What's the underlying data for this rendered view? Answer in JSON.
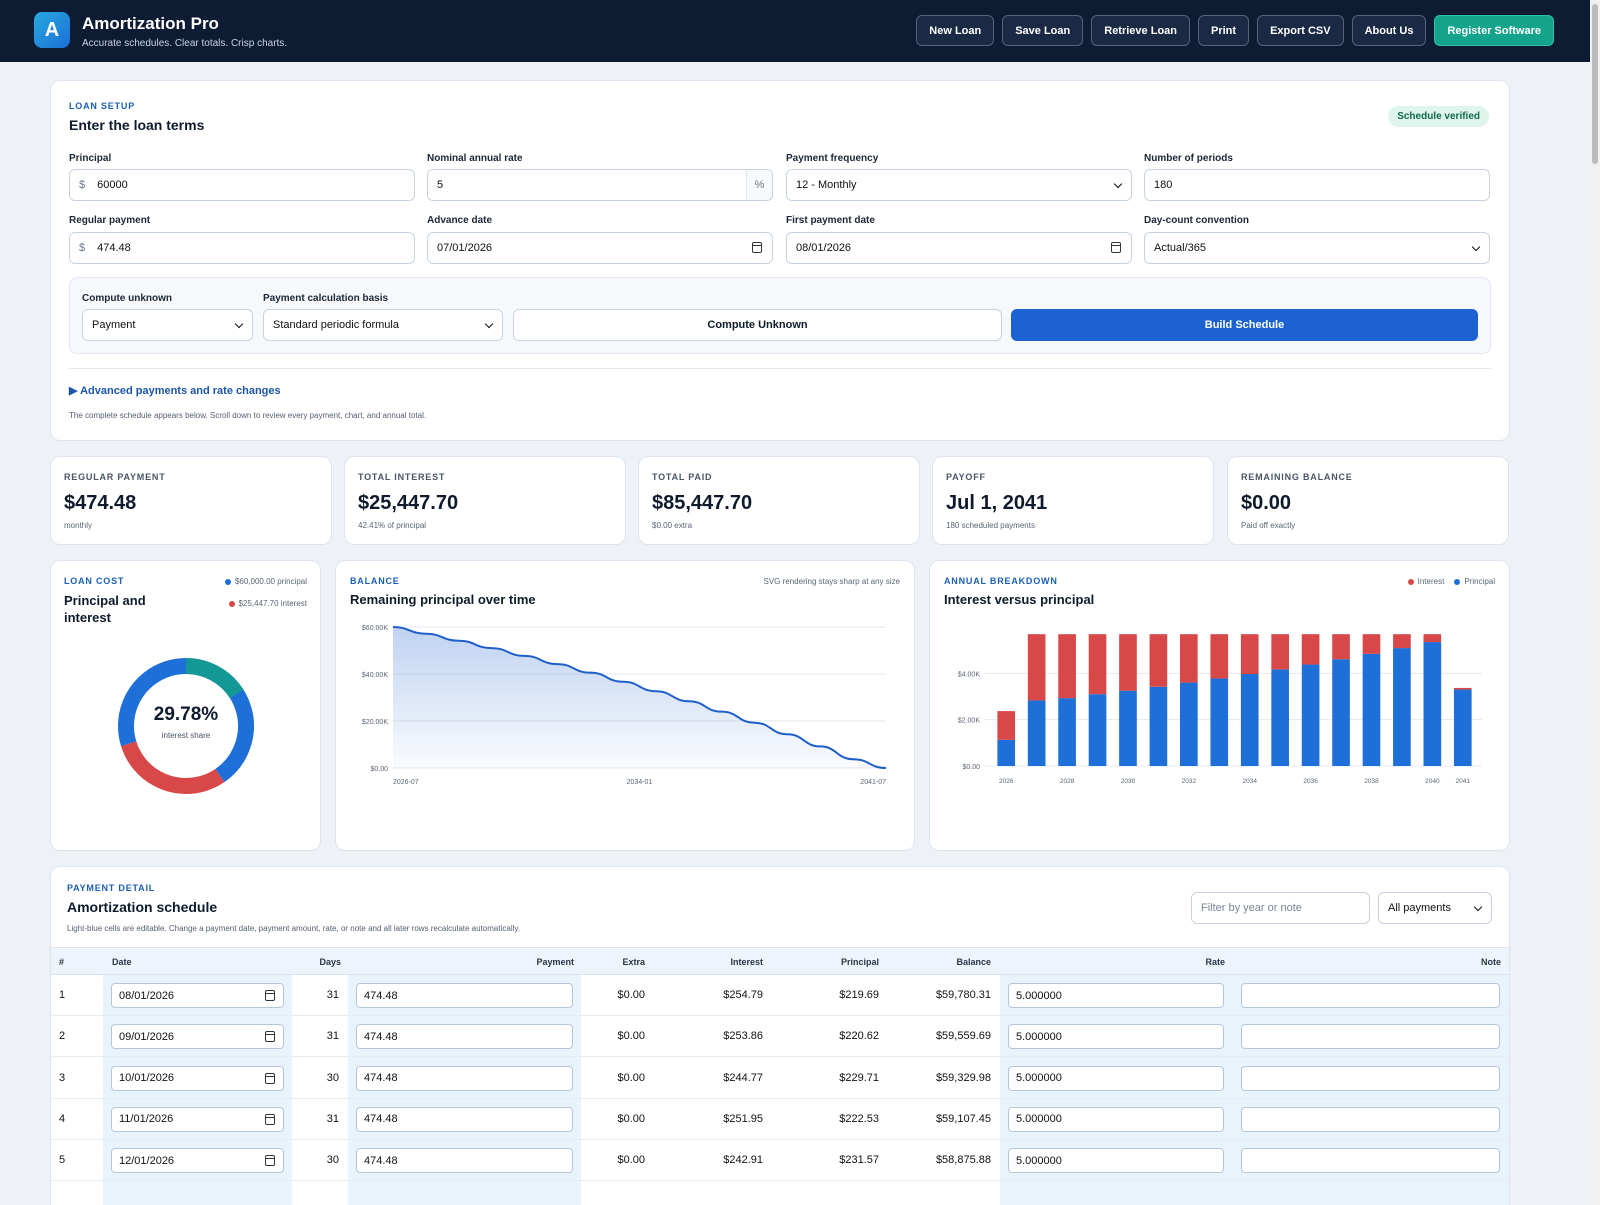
{
  "app": {
    "logo_letter": "A",
    "title": "Amortization Pro",
    "subtitle": "Accurate schedules. Clear totals. Crisp charts."
  },
  "nav": {
    "new_loan": "New Loan",
    "save_loan": "Save Loan",
    "retrieve_loan": "Retrieve Loan",
    "print": "Print",
    "export_csv": "Export CSV",
    "about": "About Us",
    "register": "Register Software"
  },
  "setup": {
    "eyebrow": "LOAN SETUP",
    "title": "Enter the loan terms",
    "badge": "Schedule verified",
    "principal": {
      "label": "Principal",
      "prefix": "$",
      "value": "60000"
    },
    "rate": {
      "label": "Nominal annual rate",
      "value": "5",
      "suffix": "%"
    },
    "frequency": {
      "label": "Payment frequency",
      "value": "12 - Monthly"
    },
    "periods": {
      "label": "Number of periods",
      "value": "180"
    },
    "regular_payment": {
      "label": "Regular payment",
      "prefix": "$",
      "value": "474.48"
    },
    "advance_date": {
      "label": "Advance date",
      "value": "07/01/2026"
    },
    "first_payment_date": {
      "label": "First payment date",
      "value": "08/01/2026"
    },
    "day_count": {
      "label": "Day-count convention",
      "value": "Actual/365"
    },
    "compute_unknown": {
      "label": "Compute unknown",
      "value": "Payment"
    },
    "calc_basis": {
      "label": "Payment calculation basis",
      "value": "Standard periodic formula"
    },
    "compute_button": "Compute Unknown",
    "build_button": "Build Schedule",
    "advanced_link": "▶  Advanced payments and rate changes",
    "help_text": "The complete schedule appears below. Scroll down to review every payment, chart, and annual total."
  },
  "stats": [
    {
      "label": "REGULAR PAYMENT",
      "value": "$474.48",
      "sub": "monthly"
    },
    {
      "label": "TOTAL INTEREST",
      "value": "$25,447.70",
      "sub": "42.41% of principal"
    },
    {
      "label": "TOTAL PAID",
      "value": "$85,447.70",
      "sub": "$0.00 extra"
    },
    {
      "label": "PAYOFF",
      "value": "Jul 1, 2041",
      "sub": "180 scheduled payments"
    },
    {
      "label": "REMAINING BALANCE",
      "value": "$0.00",
      "sub": "Paid off exactly"
    }
  ],
  "loan_cost": {
    "eyebrow": "LOAN COST",
    "title": "Principal and interest",
    "legend_principal": "$60,000.00 principal",
    "legend_interest": "$25,447.70 interest",
    "center_value": "29.78%",
    "center_label": "interest share",
    "colors": {
      "principal": "#1f6fd8",
      "interest": "#d94848",
      "accent": "#139c8e"
    }
  },
  "balance": {
    "eyebrow": "BALANCE",
    "title": "Remaining principal over time",
    "note": "SVG rendering stays sharp at any size"
  },
  "annual": {
    "eyebrow": "ANNUAL BREAKDOWN",
    "title": "Interest versus principal",
    "legend_interest": "Interest",
    "legend_principal": "Principal"
  },
  "chart_data": [
    {
      "type": "pie",
      "labels": [
        "principal",
        "interest"
      ],
      "values": [
        60000.0,
        25447.7
      ],
      "center_text": "29.78%"
    },
    {
      "type": "area",
      "title": "Remaining principal over time",
      "x_ticks": [
        "2026-07",
        "2034-01",
        "2041-07"
      ],
      "y_ticks": [
        "$0.00",
        "$20.00K",
        "$40.00K",
        "$60.00K"
      ],
      "ylim": [
        0,
        60000
      ],
      "x": [
        0,
        12,
        24,
        36,
        48,
        60,
        72,
        84,
        96,
        108,
        120,
        132,
        144,
        156,
        168,
        180
      ],
      "values": [
        60000,
        57150,
        54160,
        51010,
        47700,
        44220,
        40560,
        36720,
        32680,
        28430,
        23970,
        19280,
        14360,
        9180,
        3740,
        0
      ]
    },
    {
      "type": "bar",
      "title": "Interest versus principal",
      "stacked": true,
      "categories": [
        "2026",
        "2027",
        "2028",
        "2029",
        "2030",
        "2031",
        "2032",
        "2033",
        "2034",
        "2035",
        "2036",
        "2037",
        "2038",
        "2039",
        "2040",
        "2041"
      ],
      "x_tick_labels": [
        "2026",
        "2028",
        "2030",
        "2032",
        "2034",
        "2036",
        "2038",
        "2040",
        "2041"
      ],
      "y_ticks": [
        "$0.00",
        "$2.00K",
        "$4.00K"
      ],
      "ylim": [
        0,
        6000
      ],
      "series": [
        {
          "name": "Principal",
          "color": "#1f6fd8",
          "values": [
            1130,
            2830,
            2930,
            3100,
            3250,
            3420,
            3600,
            3780,
            3970,
            4170,
            4380,
            4610,
            4840,
            5090,
            5350,
            3300
          ]
        },
        {
          "name": "Interest",
          "color": "#d94848",
          "values": [
            1240,
            2860,
            2760,
            2590,
            2440,
            2270,
            2090,
            1910,
            1720,
            1520,
            1310,
            1080,
            850,
            600,
            340,
            70
          ]
        }
      ]
    }
  ],
  "schedule": {
    "eyebrow": "PAYMENT DETAIL",
    "title": "Amortization schedule",
    "subtitle": "Light-blue cells are editable. Change a payment date, payment amount, rate, or note and all later rows recalculate automatically.",
    "filter_placeholder": "Filter by year or note",
    "filter_select": "All payments",
    "headers": {
      "num": "#",
      "date": "Date",
      "days": "Days",
      "payment": "Payment",
      "extra": "Extra",
      "interest": "Interest",
      "principal": "Principal",
      "balance": "Balance",
      "rate": "Rate",
      "note": "Note"
    },
    "rows": [
      {
        "num": "1",
        "date": "08/01/2026",
        "days": "31",
        "payment": "474.48",
        "extra": "$0.00",
        "interest": "$254.79",
        "principal": "$219.69",
        "balance": "$59,780.31",
        "rate": "5.000000",
        "note": ""
      },
      {
        "num": "2",
        "date": "09/01/2026",
        "days": "31",
        "payment": "474.48",
        "extra": "$0.00",
        "interest": "$253.86",
        "principal": "$220.62",
        "balance": "$59,559.69",
        "rate": "5.000000",
        "note": ""
      },
      {
        "num": "3",
        "date": "10/01/2026",
        "days": "30",
        "payment": "474.48",
        "extra": "$0.00",
        "interest": "$244.77",
        "principal": "$229.71",
        "balance": "$59,329.98",
        "rate": "5.000000",
        "note": ""
      },
      {
        "num": "4",
        "date": "11/01/2026",
        "days": "31",
        "payment": "474.48",
        "extra": "$0.00",
        "interest": "$251.95",
        "principal": "$222.53",
        "balance": "$59,107.45",
        "rate": "5.000000",
        "note": ""
      },
      {
        "num": "5",
        "date": "12/01/2026",
        "days": "30",
        "payment": "474.48",
        "extra": "$0.00",
        "interest": "$242.91",
        "principal": "$231.57",
        "balance": "$58,875.88",
        "rate": "5.000000",
        "note": ""
      }
    ]
  }
}
